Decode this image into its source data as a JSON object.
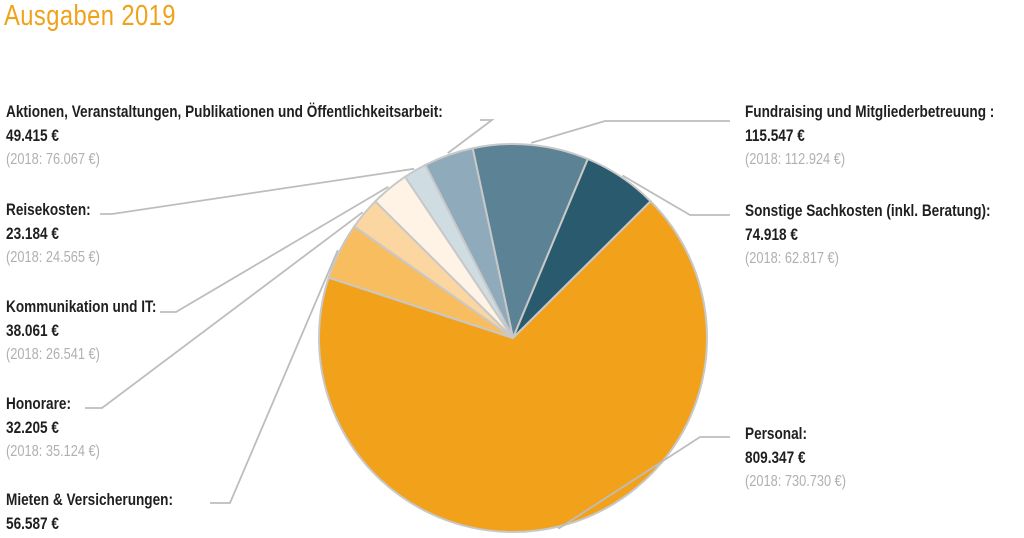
{
  "title": "Ausgaben 2019",
  "chart_data": {
    "type": "pie",
    "title": "Ausgaben 2019",
    "slices": [
      {
        "label": "Fundraising und Mitgliederbetreuung :",
        "value": 115547,
        "value_text": "115.547 €",
        "prev": "(2018: 112.924 €)",
        "color": "#5c8395"
      },
      {
        "label": "Sonstige Sachkosten (inkl. Beratung):",
        "value": 74918,
        "value_text": "74.918 €",
        "prev": "(2018: 62.817 €)",
        "color": "#2a5a6d"
      },
      {
        "label": "Personal:",
        "value": 809347,
        "value_text": "809.347 €",
        "prev": "(2018: 730.730 €)",
        "color": "#f2a11b"
      },
      {
        "label": "Mieten & Versicherungen:",
        "value": 56587,
        "value_text": "56.587 €",
        "prev": "",
        "color": "#f8bd5f"
      },
      {
        "label": "Honorare:",
        "value": 32205,
        "value_text": "32.205 €",
        "prev": "(2018: 35.124 €)",
        "color": "#fcd6a1"
      },
      {
        "label": "Kommunikation und IT:",
        "value": 38061,
        "value_text": "38.061 €",
        "prev": "(2018: 26.541 €)",
        "color": "#fef3e4"
      },
      {
        "label": "Reisekosten:",
        "value": 23184,
        "value_text": "23.184 €",
        "prev": "(2018: 24.565 €)",
        "color": "#cfdde3"
      },
      {
        "label": "Aktionen, Veranstaltungen, Publikationen und Öffentlichkeitsarbeit:",
        "value": 49415,
        "value_text": "49.415 €",
        "prev": "(2018: 76.067 €)",
        "color": "#8eaabb"
      }
    ]
  }
}
